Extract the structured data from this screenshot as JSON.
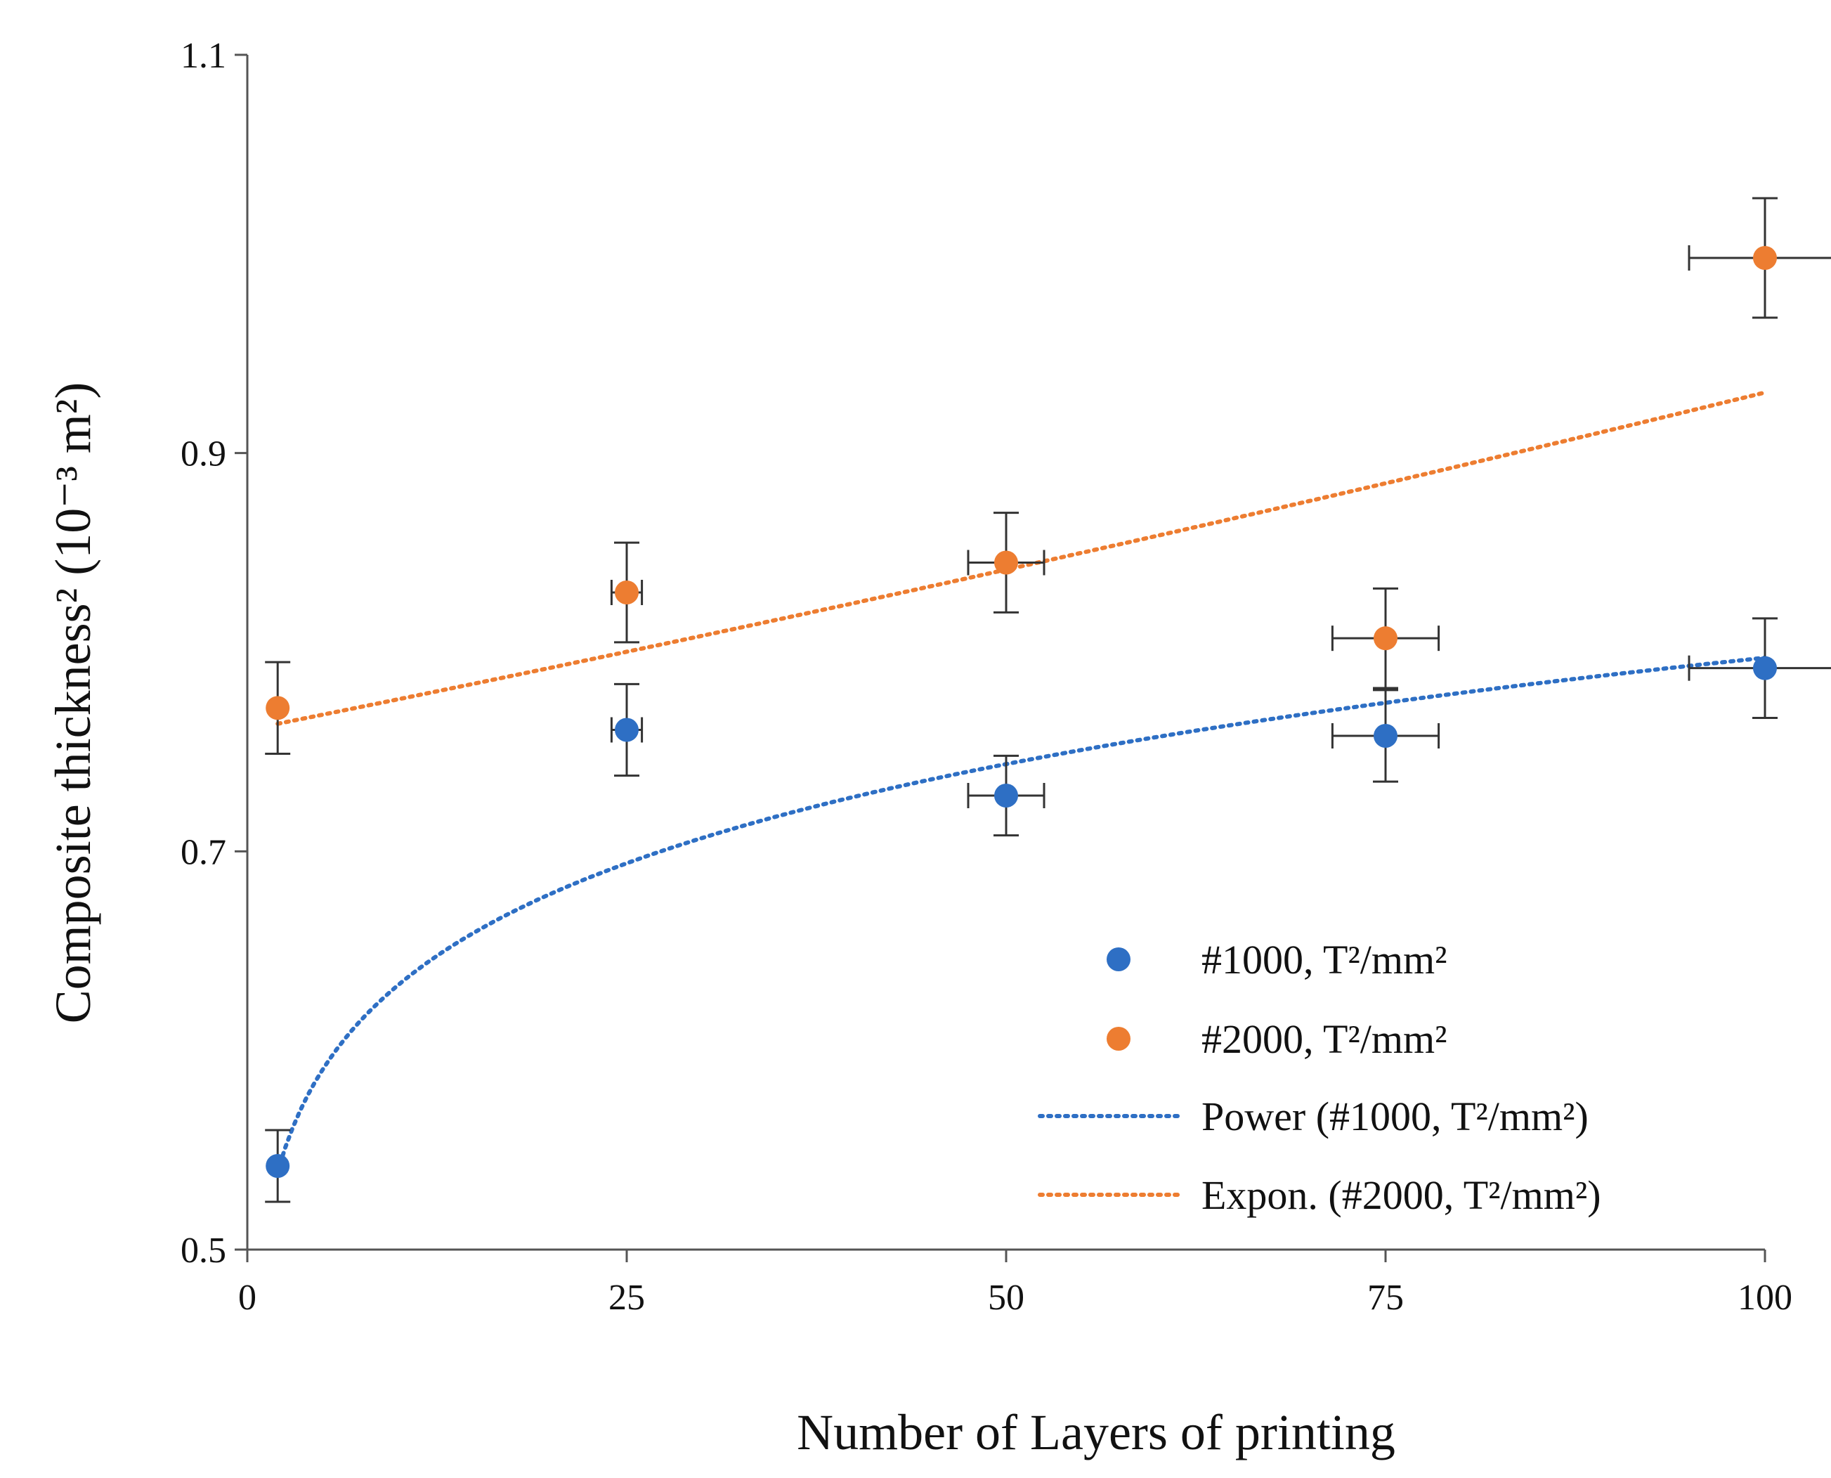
{
  "chart_data": {
    "type": "scatter",
    "title": "",
    "xlabel": "Number of Layers of printing",
    "ylabel": "Composite  thickness²  (10⁻³ m²)",
    "xlim": [
      0,
      100
    ],
    "ylim": [
      0.5,
      1.1
    ],
    "x_ticks": [
      0,
      25,
      50,
      75,
      100
    ],
    "x_tick_labels": [
      "0",
      "25",
      "50",
      "75",
      "100"
    ],
    "y_ticks": [
      0.5,
      0.7,
      0.9,
      1.1
    ],
    "y_tick_labels": [
      "0.5",
      "0.7",
      "0.9",
      "1.1"
    ],
    "grid": false,
    "legend_position": "lower-right",
    "series": [
      {
        "name": "#1000, T²/mm²",
        "color": "#2e6fc4",
        "x": [
          2,
          25,
          50,
          75,
          100
        ],
        "y": [
          0.542,
          0.761,
          0.728,
          0.758,
          0.792
        ],
        "y_err": [
          0.018,
          0.023,
          0.02,
          0.023,
          0.025
        ],
        "x_err": [
          0,
          1.0,
          2.5,
          3.5,
          5.0
        ]
      },
      {
        "name": "#2000, T²/mm²",
        "color": "#ed7d31",
        "x": [
          2,
          25,
          50,
          75,
          100
        ],
        "y": [
          0.772,
          0.83,
          0.845,
          0.807,
          0.998
        ],
        "y_err": [
          0.023,
          0.025,
          0.025,
          0.025,
          0.03
        ],
        "x_err": [
          0,
          1.0,
          2.5,
          3.5,
          5.0
        ]
      }
    ],
    "trendlines": [
      {
        "name": "Power (#1000, T²/mm²)",
        "of_series": "#1000, T²/mm²",
        "kind": "power",
        "a": 0.503,
        "b": 0.1,
        "x_range": [
          2,
          100
        ],
        "color": "#2e6fc4"
      },
      {
        "name": "Expon. (#2000, T²/mm²)",
        "of_series": "#2000, T²/mm²",
        "kind": "exponential",
        "a": 0.761,
        "b": 0.00201,
        "x_range": [
          2,
          100
        ],
        "color": "#ed7d31"
      }
    ]
  }
}
